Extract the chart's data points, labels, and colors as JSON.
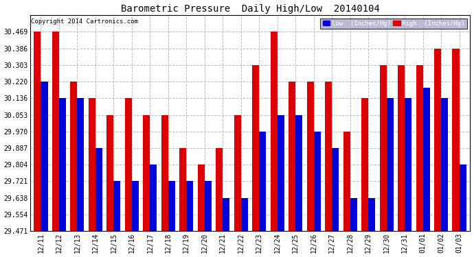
{
  "title": "Barometric Pressure  Daily High/Low  20140104",
  "copyright": "Copyright 2014 Cartronics.com",
  "low_color": "#0000dd",
  "high_color": "#dd0000",
  "background_color": "#ffffff",
  "grid_color": "#bbbbbb",
  "ylim_min": 29.471,
  "ylim_max": 30.552,
  "yticks": [
    29.471,
    29.554,
    29.638,
    29.721,
    29.804,
    29.887,
    29.97,
    30.053,
    30.136,
    30.22,
    30.303,
    30.386,
    30.469
  ],
  "dates": [
    "12/11",
    "12/12",
    "12/13",
    "12/14",
    "12/15",
    "12/16",
    "12/17",
    "12/18",
    "12/19",
    "12/20",
    "12/21",
    "12/22",
    "12/23",
    "12/24",
    "12/25",
    "12/26",
    "12/27",
    "12/28",
    "12/29",
    "12/30",
    "12/31",
    "01/01",
    "01/02",
    "01/03"
  ],
  "high_values": [
    30.469,
    30.469,
    30.22,
    30.136,
    30.053,
    30.136,
    30.053,
    30.053,
    29.887,
    29.804,
    29.887,
    30.053,
    30.303,
    30.469,
    30.22,
    30.22,
    30.22,
    29.97,
    30.136,
    30.303,
    30.303,
    30.303,
    30.386,
    30.386
  ],
  "low_values": [
    30.22,
    30.136,
    30.136,
    29.887,
    29.721,
    29.721,
    29.804,
    29.721,
    29.721,
    29.721,
    29.638,
    29.638,
    29.97,
    30.053,
    30.053,
    29.97,
    29.887,
    29.638,
    29.638,
    30.136,
    30.136,
    30.19,
    30.136,
    29.804
  ]
}
